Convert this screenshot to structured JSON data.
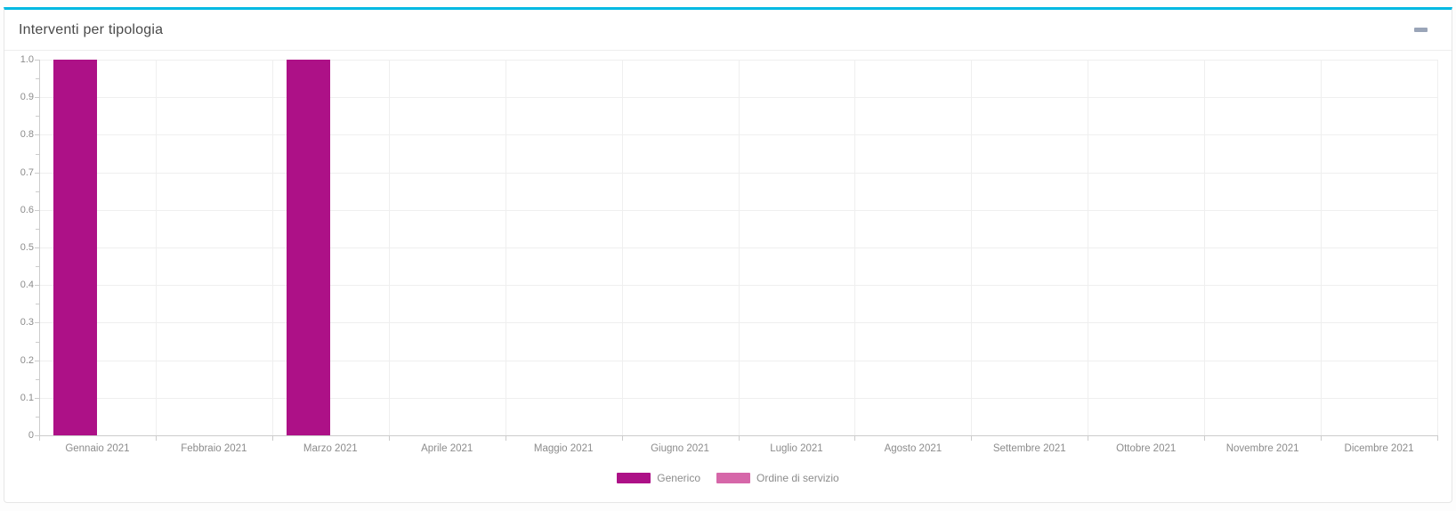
{
  "card": {
    "title": "Interventi per tipologia",
    "collapse_icon": "minus-icon",
    "accent_color": "#00b8e2"
  },
  "chart_data": {
    "type": "bar",
    "title": "Interventi per tipologia",
    "categories": [
      "Gennaio 2021",
      "Febbraio 2021",
      "Marzo 2021",
      "Aprile 2021",
      "Maggio 2021",
      "Giugno 2021",
      "Luglio 2021",
      "Agosto 2021",
      "Settembre 2021",
      "Ottobre 2021",
      "Novembre 2021",
      "Dicembre 2021"
    ],
    "series": [
      {
        "name": "Generico",
        "color": "#AD1187",
        "values": [
          1,
          0,
          1,
          0,
          0,
          0,
          0,
          0,
          0,
          0,
          0,
          0
        ]
      },
      {
        "name": "Ordine di servizio",
        "color": "#D667A9",
        "values": [
          0,
          0,
          0,
          0,
          0,
          0,
          0,
          0,
          0,
          0,
          0,
          0
        ]
      }
    ],
    "xlabel": "",
    "ylabel": "",
    "ylim": [
      0,
      1.0
    ],
    "ytick_step": 0.1,
    "ytick_labels": [
      "0",
      "0.1",
      "0.2",
      "0.3",
      "0.4",
      "0.5",
      "0.6",
      "0.7",
      "0.8",
      "0.9",
      "1.0"
    ],
    "grid": true,
    "legend_position": "bottom"
  }
}
